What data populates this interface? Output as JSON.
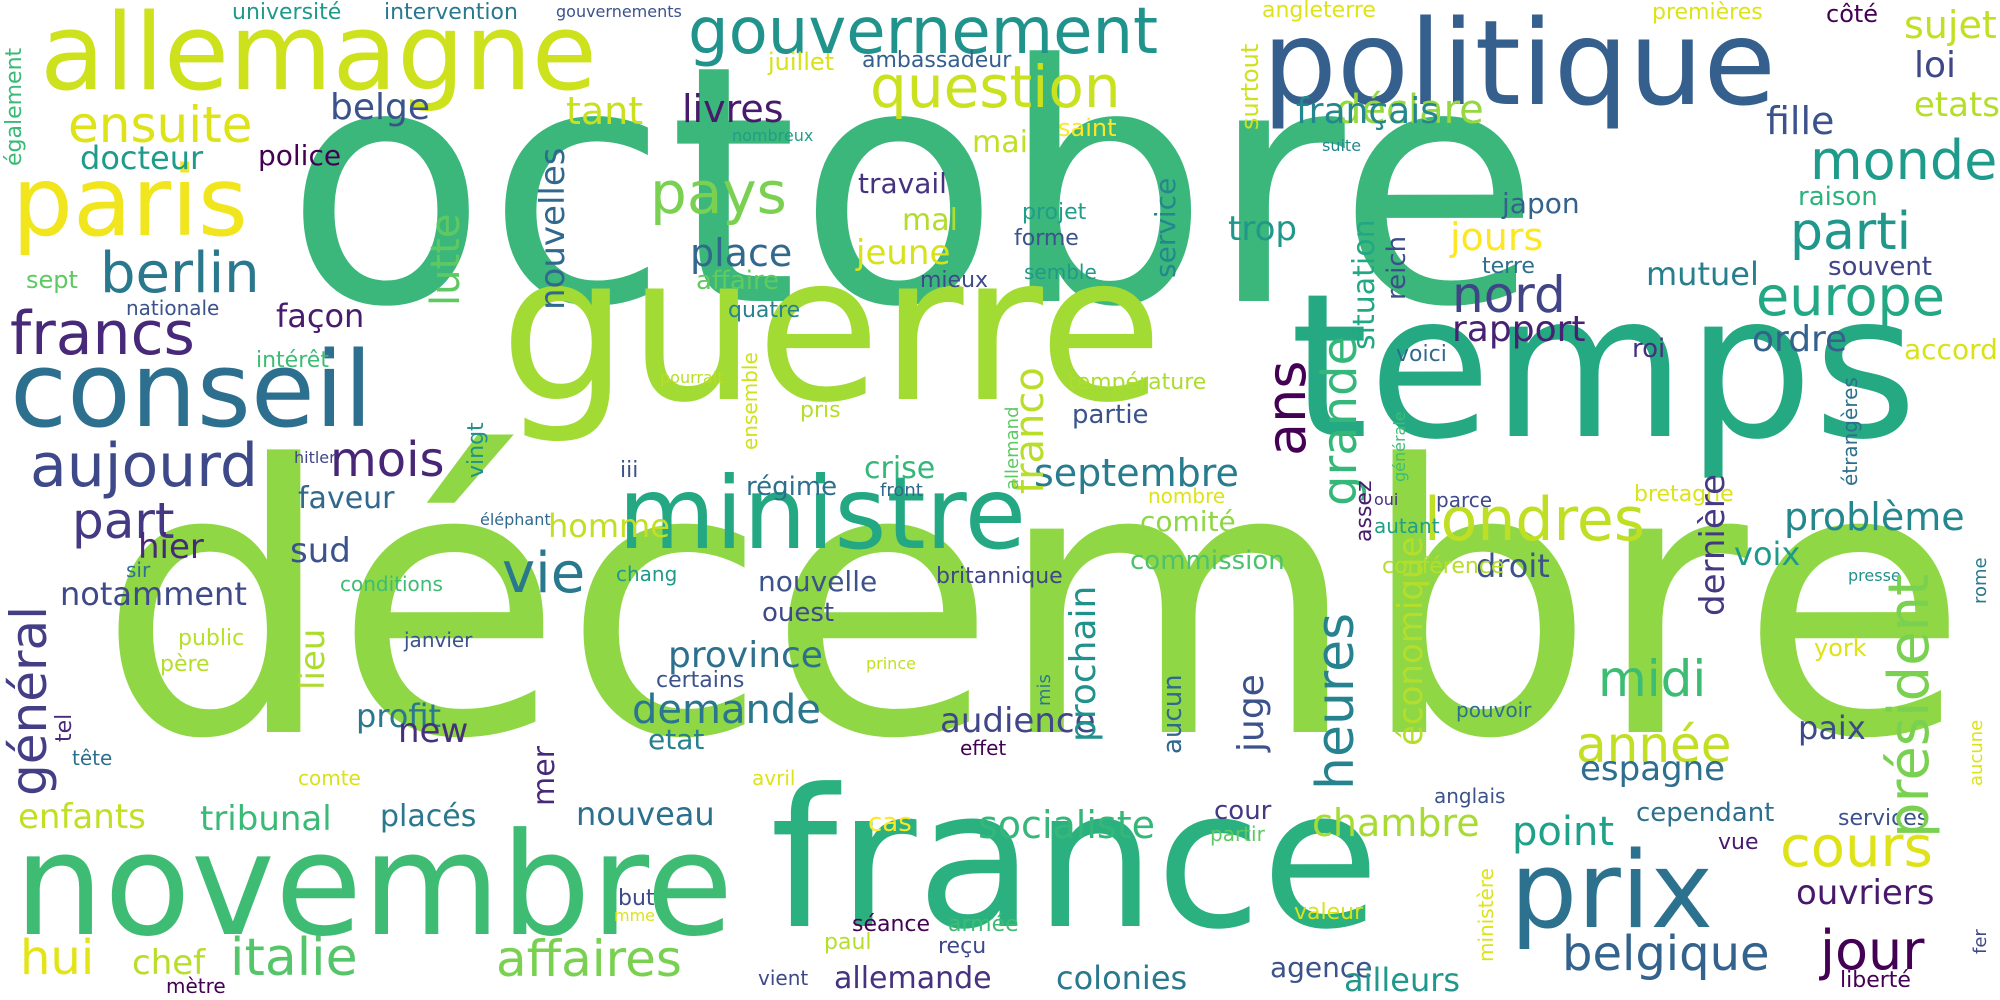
{
  "word_cloud": {
    "palette": [
      "#440154",
      "#482878",
      "#3e4989",
      "#31688e",
      "#26828e",
      "#1f9e89",
      "#35b779",
      "#6ece58",
      "#b5de2b",
      "#fde725"
    ],
    "words": [
      {
        "text": "décembre",
        "color": "#8fd744"
      },
      {
        "text": "octobre",
        "color": "#3bb77b"
      },
      {
        "text": "temps",
        "color": "#24a982"
      },
      {
        "text": "guerre",
        "color": "#a2db34"
      },
      {
        "text": "france",
        "color": "#2bb07f"
      },
      {
        "text": "novembre",
        "color": "#3fbc73"
      },
      {
        "text": "politique",
        "color": "#355f8d"
      },
      {
        "text": "allemagne",
        "color": "#cde11d"
      },
      {
        "text": "conseil",
        "color": "#2d6f8e"
      },
      {
        "text": "ministre",
        "color": "#23a883"
      },
      {
        "text": "paris",
        "color": "#f1e51d"
      },
      {
        "text": "prix",
        "color": "#2c728e"
      },
      {
        "text": "gouvernement",
        "color": "#20938c"
      },
      {
        "text": "question",
        "color": "#cae11f"
      },
      {
        "text": "londres",
        "color": "#bfdf25"
      },
      {
        "text": "président",
        "color": "#7ad151"
      },
      {
        "text": "général",
        "color": "#433e85"
      },
      {
        "text": "aujourd",
        "color": "#3e4989"
      },
      {
        "text": "heures",
        "color": "#26828e"
      },
      {
        "text": "berlin",
        "color": "#2a788e"
      },
      {
        "text": "francs",
        "color": "#482878"
      },
      {
        "text": "pays",
        "color": "#7ad151"
      },
      {
        "text": "parti",
        "color": "#1f988b"
      },
      {
        "text": "europe",
        "color": "#22a884"
      },
      {
        "text": "monde",
        "color": "#1e9b8a"
      },
      {
        "text": "cours",
        "color": "#dde318"
      },
      {
        "text": "jour",
        "color": "#440154"
      },
      {
        "text": "italie",
        "color": "#54c568"
      },
      {
        "text": "affaires",
        "color": "#7ad151"
      },
      {
        "text": "belgique",
        "color": "#33638d"
      },
      {
        "text": "grande",
        "color": "#35b779"
      },
      {
        "text": "ans",
        "color": "#440154"
      },
      {
        "text": "mois",
        "color": "#482677"
      },
      {
        "text": "part",
        "color": "#443a83"
      },
      {
        "text": "vie",
        "color": "#2a788e"
      },
      {
        "text": "année",
        "color": "#c2df23"
      },
      {
        "text": "midi",
        "color": "#3dbc74"
      },
      {
        "text": "ensuite",
        "color": "#dde318"
      },
      {
        "text": "septembre",
        "color": "#287c8e"
      },
      {
        "text": "nord",
        "color": "#414487"
      },
      {
        "text": "socialiste",
        "color": "#35b779"
      },
      {
        "text": "chambre",
        "color": "#a8db34"
      },
      {
        "text": "demande",
        "color": "#2a768e"
      },
      {
        "text": "hui",
        "color": "#e2e418"
      },
      {
        "text": "ouvriers",
        "color": "#48186a"
      },
      {
        "text": "espagne",
        "color": "#2e6e8e"
      },
      {
        "text": "point",
        "color": "#1fa088"
      },
      {
        "text": "franco",
        "color": "#b8de29"
      },
      {
        "text": "jours",
        "color": "#fde725"
      },
      {
        "text": "rapport",
        "color": "#482173"
      },
      {
        "text": "déclare",
        "color": "#95d840"
      },
      {
        "text": "français",
        "color": "#24868e"
      },
      {
        "text": "fille",
        "color": "#3b528b"
      },
      {
        "text": "loi",
        "color": "#3f4788"
      },
      {
        "text": "sujet",
        "color": "#c2df23"
      },
      {
        "text": "etats",
        "color": "#b5de2b"
      },
      {
        "text": "ordre",
        "color": "#34618d"
      },
      {
        "text": "accord",
        "color": "#d8e219"
      },
      {
        "text": "mutuel",
        "color": "#277f8e"
      },
      {
        "text": "trop",
        "color": "#1f978b"
      },
      {
        "text": "situation",
        "color": "#22a785"
      },
      {
        "text": "reich",
        "color": "#3d4d8a"
      },
      {
        "text": "japon",
        "color": "#33638d"
      },
      {
        "text": "raison",
        "color": "#2db27d"
      },
      {
        "text": "souvent",
        "color": "#414487"
      },
      {
        "text": "terre",
        "color": "#2d708e"
      },
      {
        "text": "roi",
        "color": "#46307e"
      },
      {
        "text": "voici",
        "color": "#31688e"
      },
      {
        "text": "lutte",
        "color": "#5ec962"
      },
      {
        "text": "nouvelles",
        "color": "#31688e"
      },
      {
        "text": "livres",
        "color": "#481a6c"
      },
      {
        "text": "tant",
        "color": "#c8e020"
      },
      {
        "text": "belge",
        "color": "#3b528b"
      },
      {
        "text": "docteur",
        "color": "#1e9b8a"
      },
      {
        "text": "police",
        "color": "#440154"
      },
      {
        "text": "également",
        "color": "#3aba76"
      },
      {
        "text": "juillet",
        "color": "#d8e219"
      },
      {
        "text": "ambassadeur",
        "color": "#355f8d"
      },
      {
        "text": "mai",
        "color": "#c0df25"
      },
      {
        "text": "saint",
        "color": "#fde725"
      },
      {
        "text": "service",
        "color": "#24878e"
      },
      {
        "text": "surtout",
        "color": "#cfe11c"
      },
      {
        "text": "angleterre",
        "color": "#dde318"
      },
      {
        "text": "premières",
        "color": "#dde318"
      },
      {
        "text": "côté",
        "color": "#440154"
      },
      {
        "text": "université",
        "color": "#1f998a"
      },
      {
        "text": "intervention",
        "color": "#2a788e"
      },
      {
        "text": "gouvernements",
        "color": "#3b528b"
      },
      {
        "text": "nombreux",
        "color": "#1f9e89"
      },
      {
        "text": "suite",
        "color": "#23888e"
      },
      {
        "text": "travail",
        "color": "#46337f"
      },
      {
        "text": "mal",
        "color": "#b2dd2d"
      },
      {
        "text": "projet",
        "color": "#1f9e89"
      },
      {
        "text": "forme",
        "color": "#3b528b"
      },
      {
        "text": "semble",
        "color": "#1f9a8a"
      },
      {
        "text": "place",
        "color": "#31688e"
      },
      {
        "text": "jeune",
        "color": "#d8e219"
      },
      {
        "text": "affaire",
        "color": "#62cb5f"
      },
      {
        "text": "mieux",
        "color": "#3e4a89"
      },
      {
        "text": "quatre",
        "color": "#26828e"
      },
      {
        "text": "nationale",
        "color": "#3b528b"
      },
      {
        "text": "façon",
        "color": "#481b6d"
      },
      {
        "text": "sept",
        "color": "#5ec962"
      },
      {
        "text": "intérêt",
        "color": "#3dbc74"
      },
      {
        "text": "pourrait",
        "color": "#b8de29"
      },
      {
        "text": "vingt",
        "color": "#21918c"
      },
      {
        "text": "ensemble",
        "color": "#d0e11c"
      },
      {
        "text": "température",
        "color": "#addc30"
      },
      {
        "text": "partie",
        "color": "#3b528b"
      },
      {
        "text": "pris",
        "color": "#b5de2b"
      },
      {
        "text": "faveur",
        "color": "#31688e"
      },
      {
        "text": "hitler",
        "color": "#404688"
      },
      {
        "text": "iii",
        "color": "#3b528b"
      },
      {
        "text": "régime",
        "color": "#2d708e"
      },
      {
        "text": "crise",
        "color": "#35b779"
      },
      {
        "text": "front",
        "color": "#31688e"
      },
      {
        "text": "nombre",
        "color": "#dde318"
      },
      {
        "text": "allemand",
        "color": "#5ec962"
      },
      {
        "text": "générale",
        "color": "#3dbc74"
      },
      {
        "text": "assez",
        "color": "#481b6d"
      },
      {
        "text": "déclaré",
        "color": "#482878"
      },
      {
        "text": "oui",
        "color": "#46327e"
      },
      {
        "text": "parce",
        "color": "#3e4989"
      },
      {
        "text": "autant",
        "color": "#1f9e89"
      },
      {
        "text": "bretagne",
        "color": "#dde318"
      },
      {
        "text": "étrangères",
        "color": "#2d708e"
      },
      {
        "text": "rome",
        "color": "#2a788e"
      },
      {
        "text": "problème",
        "color": "#24878e"
      },
      {
        "text": "voix",
        "color": "#1f9a8a"
      },
      {
        "text": "dernière",
        "color": "#443983"
      },
      {
        "text": "droit",
        "color": "#3b528b"
      },
      {
        "text": "comité",
        "color": "#8ed645"
      },
      {
        "text": "commission",
        "color": "#4cc26c"
      },
      {
        "text": "juge",
        "color": "#3b528b"
      },
      {
        "text": "conférence",
        "color": "#b5de2b"
      },
      {
        "text": "presse",
        "color": "#21918c"
      },
      {
        "text": "hier",
        "color": "#482878"
      },
      {
        "text": "homme",
        "color": "#c2df23"
      },
      {
        "text": "sud",
        "color": "#3b528b"
      },
      {
        "text": "notamment",
        "color": "#3e4989"
      },
      {
        "text": "sir",
        "color": "#2d708e"
      },
      {
        "text": "conditions",
        "color": "#3dbc74"
      },
      {
        "text": "chang",
        "color": "#1f9a8a"
      },
      {
        "text": "nouvelle",
        "color": "#3b528b"
      },
      {
        "text": "britannique",
        "color": "#404688"
      },
      {
        "text": "mer",
        "color": "#482878"
      },
      {
        "text": "éléphant",
        "color": "#31688e"
      },
      {
        "text": "mis",
        "color": "#2a788e"
      },
      {
        "text": "public",
        "color": "#b8de29"
      },
      {
        "text": "père",
        "color": "#b5de2b"
      },
      {
        "text": "janvier",
        "color": "#3b528b"
      },
      {
        "text": "tel",
        "color": "#482878"
      },
      {
        "text": "tête",
        "color": "#2d708e"
      },
      {
        "text": "profit",
        "color": "#2a788e"
      },
      {
        "text": "lieu",
        "color": "#addc30"
      },
      {
        "text": "province",
        "color": "#2d708e"
      },
      {
        "text": "certains",
        "color": "#3b528b"
      },
      {
        "text": "etat",
        "color": "#27808e"
      },
      {
        "text": "new",
        "color": "#472f7d"
      },
      {
        "text": "ouest",
        "color": "#3e4989"
      },
      {
        "text": "prince",
        "color": "#c2df23"
      },
      {
        "text": "audience",
        "color": "#404688"
      },
      {
        "text": "effet",
        "color": "#440154"
      },
      {
        "text": "prochain",
        "color": "#21918c"
      },
      {
        "text": "aucun",
        "color": "#31688e"
      },
      {
        "text": "pouvoir",
        "color": "#2d708e"
      },
      {
        "text": "york",
        "color": "#dde318"
      },
      {
        "text": "paix",
        "color": "#3e4989"
      },
      {
        "text": "économique",
        "color": "#b5de2b"
      },
      {
        "text": "comte",
        "color": "#d8e219"
      },
      {
        "text": "avril",
        "color": "#dde318"
      },
      {
        "text": "enfants",
        "color": "#c2df23"
      },
      {
        "text": "tribunal",
        "color": "#3aba76"
      },
      {
        "text": "placés",
        "color": "#2a788e"
      },
      {
        "text": "nouveau",
        "color": "#2d708e"
      },
      {
        "text": "cas",
        "color": "#fde725"
      },
      {
        "text": "cour",
        "color": "#443983"
      },
      {
        "text": "partir",
        "color": "#5ec962"
      },
      {
        "text": "anglais",
        "color": "#3b528b"
      },
      {
        "text": "cependant",
        "color": "#2d708e"
      },
      {
        "text": "services",
        "color": "#3b528b"
      },
      {
        "text": "vue",
        "color": "#481b6d"
      },
      {
        "text": "chef",
        "color": "#b8de29"
      },
      {
        "text": "but",
        "color": "#3e4989"
      },
      {
        "text": "mme",
        "color": "#dde318"
      },
      {
        "text": "séance",
        "color": "#440154"
      },
      {
        "text": "armée",
        "color": "#3dbc74"
      },
      {
        "text": "paul",
        "color": "#b5de2b"
      },
      {
        "text": "reçu",
        "color": "#3e4989"
      },
      {
        "text": "vient",
        "color": "#3e4989"
      },
      {
        "text": "allemande",
        "color": "#46327e"
      },
      {
        "text": "colonies",
        "color": "#2a788e"
      },
      {
        "text": "agence",
        "color": "#3b528b"
      },
      {
        "text": "ailleurs",
        "color": "#1f988b"
      },
      {
        "text": "aucune",
        "color": "#dde318"
      },
      {
        "text": "valeur",
        "color": "#d8e219"
      },
      {
        "text": "ministère",
        "color": "#dde318"
      },
      {
        "text": "liberté",
        "color": "#440154"
      },
      {
        "text": "fer",
        "color": "#3e4989"
      },
      {
        "text": "mètre",
        "color": "#440154"
      }
    ]
  }
}
